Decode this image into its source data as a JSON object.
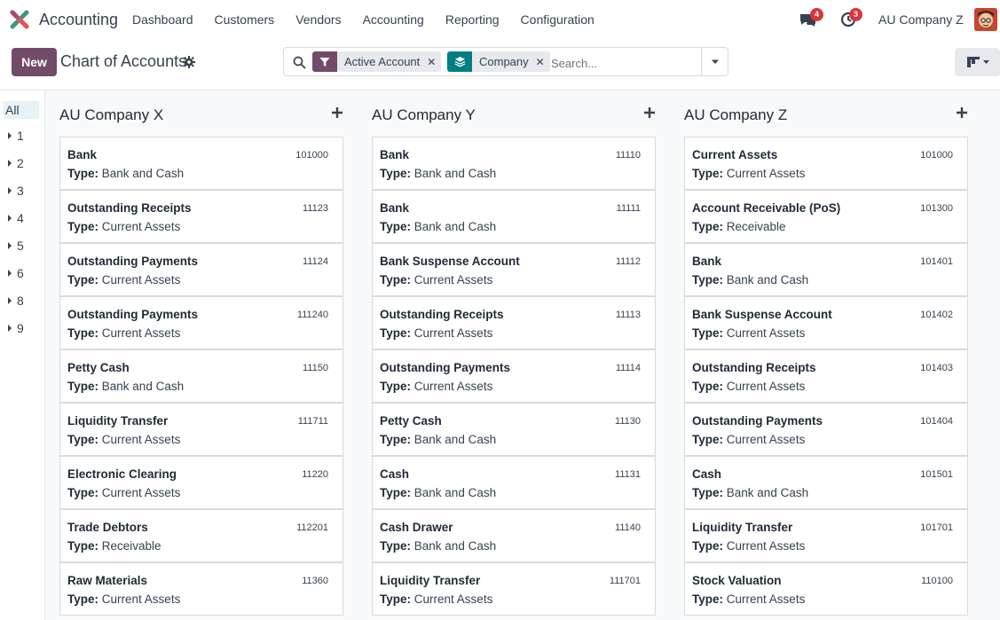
{
  "app": {
    "name": "Accounting"
  },
  "menu": [
    "Dashboard",
    "Customers",
    "Vendors",
    "Accounting",
    "Reporting",
    "Configuration"
  ],
  "notifications": {
    "messages": "4",
    "activities": "3"
  },
  "user": {
    "company": "AU Company Z"
  },
  "control": {
    "new_label": "New",
    "title": "Chart of Accounts",
    "facets": [
      {
        "label": "Active Account",
        "icon": "filter-icon",
        "color": "#714b67"
      },
      {
        "label": "Company",
        "icon": "layers-icon",
        "color": "#017e84"
      }
    ],
    "search_placeholder": "Search..."
  },
  "sidebar": {
    "all_label": "All",
    "items": [
      "1",
      "2",
      "3",
      "4",
      "5",
      "6",
      "8",
      "9"
    ]
  },
  "type_label": "Type:",
  "columns": [
    {
      "title": "AU Company X",
      "cards": [
        {
          "name": "Bank",
          "code": "101000",
          "type": "Bank and Cash"
        },
        {
          "name": "Outstanding Receipts",
          "code": "11123",
          "type": "Current Assets"
        },
        {
          "name": "Outstanding Payments",
          "code": "11124",
          "type": "Current Assets"
        },
        {
          "name": "Outstanding Payments",
          "code": "111240",
          "type": "Current Assets"
        },
        {
          "name": "Petty Cash",
          "code": "11150",
          "type": "Bank and Cash"
        },
        {
          "name": "Liquidity Transfer",
          "code": "111711",
          "type": "Current Assets"
        },
        {
          "name": "Electronic Clearing",
          "code": "11220",
          "type": "Current Assets"
        },
        {
          "name": "Trade Debtors",
          "code": "112201",
          "type": "Receivable"
        },
        {
          "name": "Raw Materials",
          "code": "11360",
          "type": "Current Assets"
        }
      ]
    },
    {
      "title": "AU Company Y",
      "cards": [
        {
          "name": "Bank",
          "code": "11110",
          "type": "Bank and Cash"
        },
        {
          "name": "Bank",
          "code": "11111",
          "type": "Bank and Cash"
        },
        {
          "name": "Bank Suspense Account",
          "code": "11112",
          "type": "Current Assets"
        },
        {
          "name": "Outstanding Receipts",
          "code": "11113",
          "type": "Current Assets"
        },
        {
          "name": "Outstanding Payments",
          "code": "11114",
          "type": "Current Assets"
        },
        {
          "name": "Petty Cash",
          "code": "11130",
          "type": "Bank and Cash"
        },
        {
          "name": "Cash",
          "code": "11131",
          "type": "Bank and Cash"
        },
        {
          "name": "Cash Drawer",
          "code": "11140",
          "type": "Bank and Cash"
        },
        {
          "name": "Liquidity Transfer",
          "code": "111701",
          "type": "Current Assets"
        }
      ]
    },
    {
      "title": "AU Company Z",
      "cards": [
        {
          "name": "Current Assets",
          "code": "101000",
          "type": "Current Assets"
        },
        {
          "name": "Account Receivable (PoS)",
          "code": "101300",
          "type": "Receivable"
        },
        {
          "name": "Bank",
          "code": "101401",
          "type": "Bank and Cash"
        },
        {
          "name": "Bank Suspense Account",
          "code": "101402",
          "type": "Current Assets"
        },
        {
          "name": "Outstanding Receipts",
          "code": "101403",
          "type": "Current Assets"
        },
        {
          "name": "Outstanding Payments",
          "code": "101404",
          "type": "Current Assets"
        },
        {
          "name": "Cash",
          "code": "101501",
          "type": "Bank and Cash"
        },
        {
          "name": "Liquidity Transfer",
          "code": "101701",
          "type": "Current Assets"
        },
        {
          "name": "Stock Valuation",
          "code": "110100",
          "type": "Current Assets"
        }
      ]
    }
  ]
}
